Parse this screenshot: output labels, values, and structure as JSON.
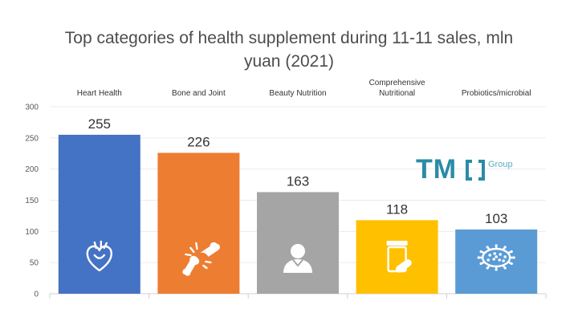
{
  "chart_data": {
    "type": "bar",
    "title": "Top categories of health supplement during 11-11 sales, mln yuan (2021)",
    "categories": [
      "Heart Health",
      "Bone and Joint",
      "Beauty Nutrition",
      "Comprehensive Nutritional",
      "Probiotics/microbial"
    ],
    "values": [
      255,
      226,
      163,
      118,
      103
    ],
    "colors": [
      "#4472c4",
      "#ed7d31",
      "#a5a5a5",
      "#ffc000",
      "#5b9bd5"
    ],
    "icons": [
      "heart-icon",
      "joint-bone-icon",
      "person-icon",
      "pill-bottle-icon",
      "microbe-icon"
    ],
    "yticks": [
      0,
      50,
      100,
      150,
      200,
      250,
      300
    ],
    "ylim": [
      0,
      300
    ],
    "xlabel": "",
    "ylabel": "",
    "grid": true
  },
  "logo": {
    "mark": "TM",
    "brackets": "()",
    "word": "Group"
  }
}
